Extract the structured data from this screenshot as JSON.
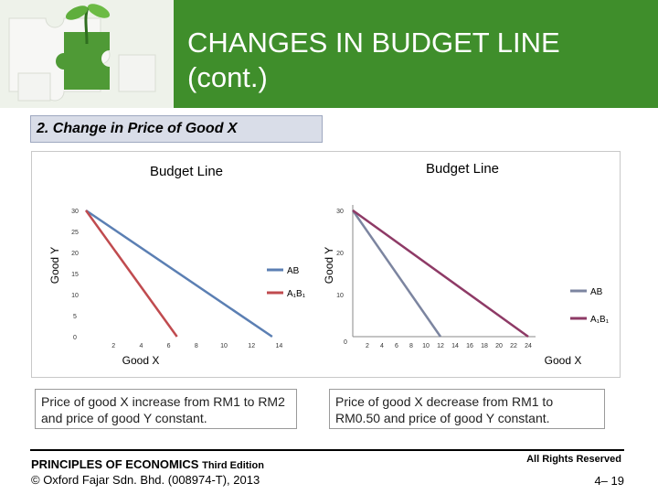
{
  "slide": {
    "title_line1": "CHANGES IN BUDGET LINE",
    "title_line2": "(cont.)",
    "subtitle": "2. Change in Price of Good X"
  },
  "chart_data": [
    {
      "type": "line",
      "title": "Budget Line",
      "xlabel": "Good X",
      "ylabel": "Good Y",
      "x_ticks": [
        2,
        4,
        6,
        8,
        10,
        12,
        14
      ],
      "y_ticks": [
        0,
        5,
        10,
        15,
        20,
        25,
        30
      ],
      "series": [
        {
          "name": "AB",
          "color": "#5b7fb3",
          "points": [
            [
              0,
              30
            ],
            [
              13.5,
              0
            ]
          ]
        },
        {
          "name": "A₁B₁",
          "color": "#c04b4f",
          "points": [
            [
              0,
              30
            ],
            [
              6.6,
              0
            ]
          ]
        }
      ],
      "legend": [
        {
          "label": "AB",
          "color": "#5b7fb3"
        },
        {
          "label": "A₁B₁",
          "color": "#c04b4f"
        }
      ]
    },
    {
      "type": "line",
      "title": "Budget Line",
      "xlabel": "Good X",
      "ylabel": "Good Y",
      "x_ticks": [
        2,
        4,
        6,
        8,
        10,
        12,
        14,
        16,
        18,
        20,
        22,
        24
      ],
      "y_ticks": [
        10,
        20,
        30
      ],
      "origin_label": "0",
      "series": [
        {
          "name": "AB",
          "color": "#7c85a0",
          "points": [
            [
              0,
              30
            ],
            [
              12,
              0
            ]
          ]
        },
        {
          "name": "A₁B₁",
          "color": "#8e3a66",
          "points": [
            [
              0,
              30
            ],
            [
              24,
              0
            ]
          ]
        }
      ],
      "legend": [
        {
          "label": "AB",
          "color": "#7c85a0"
        },
        {
          "label": "A₁B₁",
          "color": "#8e3a66"
        }
      ]
    }
  ],
  "descriptions": {
    "left": "Price of good X increase from RM1 to RM2 and price of good Y constant.",
    "right": "Price of good X decrease from RM1 to RM0.50 and price of good Y constant."
  },
  "footer": {
    "book_title": "PRINCIPLES OF ECONOMICS",
    "edition": "Third Edition",
    "copyright": "© Oxford Fajar Sdn. Bhd. (008974-T), 2013",
    "rights": "All Rights Reserved",
    "page": "4– 19"
  }
}
